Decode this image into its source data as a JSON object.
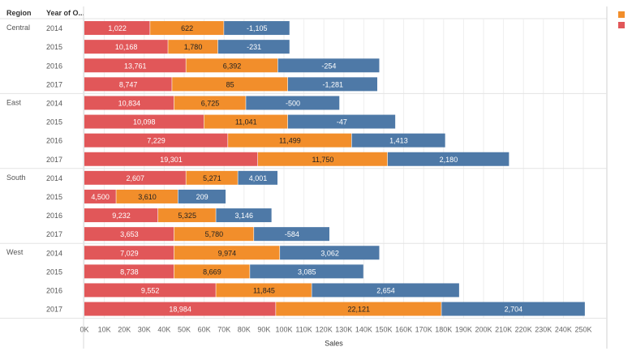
{
  "header": {
    "region_col": "Region",
    "year_col": "Year of O..."
  },
  "legend": {
    "colors": [
      "#f28e2b",
      "#e15759"
    ]
  },
  "chart_data": {
    "type": "bar",
    "orientation": "horizontal",
    "stacked": true,
    "xlabel": "Sales",
    "xlim": [
      0,
      250000
    ],
    "ticks": [
      "0K",
      "10K",
      "20K",
      "30K",
      "40K",
      "50K",
      "60K",
      "70K",
      "80K",
      "90K",
      "100K",
      "110K",
      "120K",
      "130K",
      "140K",
      "150K",
      "160K",
      "170K",
      "180K",
      "190K",
      "200K",
      "210K",
      "220K",
      "230K",
      "240K",
      "250K"
    ],
    "series_colors": [
      "#e15759",
      "#f28e2b",
      "#4e79a7"
    ],
    "groups": [
      {
        "region": "Central",
        "rows": [
          {
            "year": "2014",
            "segments": [
              {
                "label": "1,022",
                "value": 33000
              },
              {
                "label": "622",
                "value": 37000
              },
              {
                "label": "-1,105",
                "value": 33000
              }
            ]
          },
          {
            "year": "2015",
            "segments": [
              {
                "label": "10,168",
                "value": 42000
              },
              {
                "label": "1,780",
                "value": 25000
              },
              {
                "label": "-231",
                "value": 36000
              }
            ]
          },
          {
            "year": "2016",
            "segments": [
              {
                "label": "13,761",
                "value": 51000
              },
              {
                "label": "6,392",
                "value": 46000
              },
              {
                "label": "-254",
                "value": 51000
              }
            ]
          },
          {
            "year": "2017",
            "segments": [
              {
                "label": "8,747",
                "value": 44000
              },
              {
                "label": "85",
                "value": 58000
              },
              {
                "label": "-1,281",
                "value": 45000
              }
            ]
          }
        ]
      },
      {
        "region": "East",
        "rows": [
          {
            "year": "2014",
            "segments": [
              {
                "label": "10,834",
                "value": 45000
              },
              {
                "label": "6,725",
                "value": 36000
              },
              {
                "label": "-500",
                "value": 47000
              }
            ]
          },
          {
            "year": "2015",
            "segments": [
              {
                "label": "10,098",
                "value": 60000
              },
              {
                "label": "11,041",
                "value": 42000
              },
              {
                "label": "-47",
                "value": 54000
              }
            ]
          },
          {
            "year": "2016",
            "segments": [
              {
                "label": "7,229",
                "value": 72000
              },
              {
                "label": "11,499",
                "value": 62000
              },
              {
                "label": "1,413",
                "value": 47000
              }
            ]
          },
          {
            "year": "2017",
            "segments": [
              {
                "label": "19,301",
                "value": 87000
              },
              {
                "label": "11,750",
                "value": 65000
              },
              {
                "label": "2,180",
                "value": 61000
              }
            ]
          }
        ]
      },
      {
        "region": "South",
        "rows": [
          {
            "year": "2014",
            "segments": [
              {
                "label": "2,607",
                "value": 51000
              },
              {
                "label": "5,271",
                "value": 26000
              },
              {
                "label": "4,001",
                "value": 20000
              }
            ]
          },
          {
            "year": "2015",
            "segments": [
              {
                "label": "4,500",
                "value": 16000
              },
              {
                "label": "3,610",
                "value": 31000
              },
              {
                "label": "209",
                "value": 24000
              }
            ]
          },
          {
            "year": "2016",
            "segments": [
              {
                "label": "9,232",
                "value": 37000
              },
              {
                "label": "5,325",
                "value": 29000
              },
              {
                "label": "3,146",
                "value": 28000
              }
            ]
          },
          {
            "year": "2017",
            "segments": [
              {
                "label": "3,653",
                "value": 45000
              },
              {
                "label": "5,780",
                "value": 40000
              },
              {
                "label": "-584",
                "value": 38000
              }
            ]
          }
        ]
      },
      {
        "region": "West",
        "rows": [
          {
            "year": "2014",
            "segments": [
              {
                "label": "7,029",
                "value": 45000
              },
              {
                "label": "9,974",
                "value": 53000
              },
              {
                "label": "3,062",
                "value": 50000
              }
            ]
          },
          {
            "year": "2015",
            "segments": [
              {
                "label": "8,738",
                "value": 45000
              },
              {
                "label": "8,669",
                "value": 38000
              },
              {
                "label": "3,085",
                "value": 57000
              }
            ]
          },
          {
            "year": "2016",
            "segments": [
              {
                "label": "9,552",
                "value": 66000
              },
              {
                "label": "11,845",
                "value": 48000
              },
              {
                "label": "2,654",
                "value": 74000
              }
            ]
          },
          {
            "year": "2017",
            "segments": [
              {
                "label": "18,984",
                "value": 96000
              },
              {
                "label": "22,121",
                "value": 83000
              },
              {
                "label": "2,704",
                "value": 72000
              }
            ]
          }
        ]
      }
    ]
  }
}
